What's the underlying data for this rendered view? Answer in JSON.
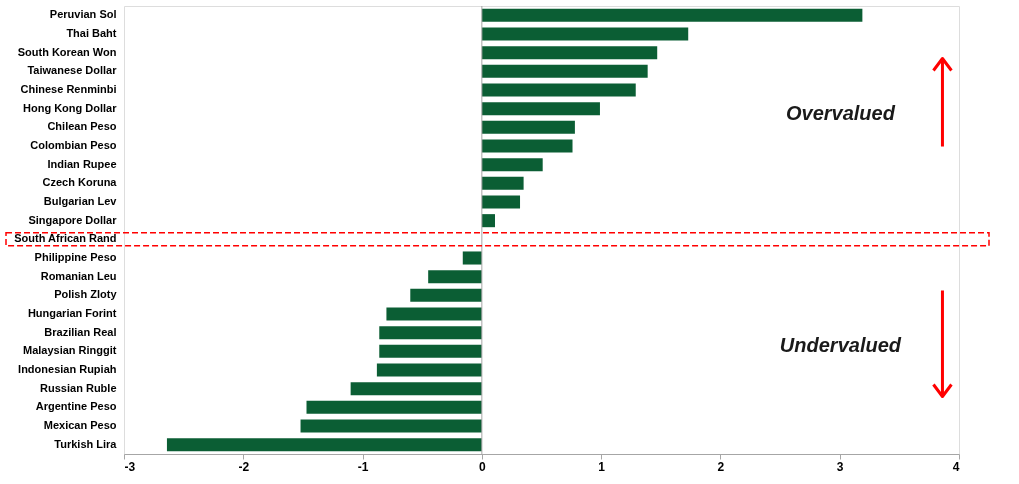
{
  "chart_data": {
    "type": "bar",
    "orientation": "horizontal",
    "categories": [
      "Peruvian Sol",
      "Thai Baht",
      "South Korean Won",
      "Taiwanese Dollar",
      "Chinese Renminbi",
      "Hong Kong Dollar",
      "Chilean Peso",
      "Colombian Peso",
      "Indian Rupee",
      "Czech Koruna",
      "Bulgarian Lev",
      "Singapore Dollar",
      "South African Rand",
      "Philippine Peso",
      "Romanian Leu",
      "Polish Zloty",
      "Hungarian Forint",
      "Brazilian Real",
      "Malaysian Ringgit",
      "Indonesian Rupiah",
      "Russian Ruble",
      "Argentine Peso",
      "Mexican Peso",
      "Turkish Lira"
    ],
    "values": [
      3.19,
      1.73,
      1.47,
      1.39,
      1.29,
      0.99,
      0.78,
      0.76,
      0.51,
      0.35,
      0.32,
      0.11,
      0,
      -0.16,
      -0.45,
      -0.6,
      -0.8,
      -0.86,
      -0.86,
      -0.88,
      -1.1,
      -1.47,
      -1.52,
      -2.64
    ],
    "color": "#0b5e34",
    "xlim": [
      -3,
      4
    ],
    "xticks": [
      -3,
      -2,
      -1,
      0,
      1,
      2,
      3,
      4
    ],
    "ref_lines": [
      {
        "axis": "x",
        "value": 0,
        "color": "#a6a6a6"
      }
    ],
    "annotations": [
      "Overvalued",
      "Undervalued"
    ],
    "grid": false
  }
}
